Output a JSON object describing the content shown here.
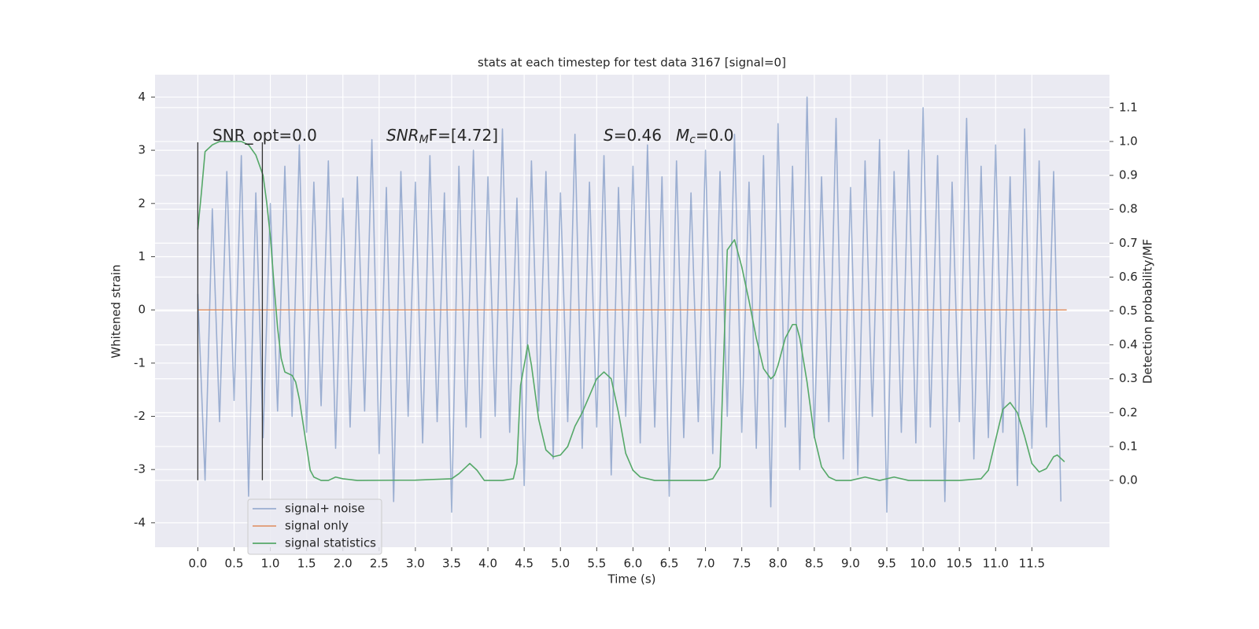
{
  "chart_data": {
    "type": "line",
    "title": "stats at each timestep for test data 3167 [signal=0]",
    "xlabel": "Time (s)",
    "ylabel": "Whitened strain",
    "y2label": "Detection probability/MF",
    "xlim": [
      -0.59,
      12.57
    ],
    "ylim": [
      -4.46,
      4.42
    ],
    "y2lim": [
      -0.197,
      1.197
    ],
    "xticks": [
      {
        "value": 0,
        "label": "0.0"
      },
      0.5,
      {
        "value": 1,
        "label": "1.0"
      },
      1.5,
      {
        "value": 2,
        "label": "2.0"
      },
      2.5,
      {
        "value": 3,
        "label": "3.0"
      },
      3.5,
      {
        "value": 4,
        "label": "4.0"
      },
      4.5,
      {
        "value": 5,
        "label": "5.0"
      },
      5.5,
      {
        "value": 6,
        "label": "6.0"
      },
      6.5,
      {
        "value": 7,
        "label": "7.0"
      },
      7.5,
      {
        "value": 8,
        "label": "8.0"
      },
      8.5,
      {
        "value": 9,
        "label": "9.0"
      },
      9.5,
      {
        "value": 10,
        "label": "10.0"
      },
      10.5,
      {
        "value": 11,
        "label": "11.0"
      },
      11.5
    ],
    "yticks": [
      -4,
      -3,
      -2,
      -1,
      0,
      1,
      2,
      3,
      4
    ],
    "y2ticks": [
      {
        "value": 0,
        "label": "0.0"
      },
      0.1,
      0.2,
      0.3,
      0.4,
      0.5,
      0.6,
      0.7,
      0.8,
      0.9,
      {
        "value": 1,
        "label": "1.0"
      },
      1.1
    ],
    "grid": true,
    "background": "#eaeaf2",
    "legend": "lower left",
    "series": [
      {
        "name": "signal+ noise",
        "color": "#4c72b0",
        "opacity": 0.5,
        "x": [
          0,
          0.1,
          0.2,
          0.3,
          0.4,
          0.5,
          0.6,
          0.7,
          0.8,
          0.9,
          1,
          1.1,
          1.2,
          1.3,
          1.4,
          1.5,
          1.6,
          1.7,
          1.8,
          1.9,
          2,
          2.1,
          2.2,
          2.3,
          2.4,
          2.5,
          2.6,
          2.7,
          2.8,
          2.9,
          3,
          3.1,
          3.2,
          3.3,
          3.4,
          3.5,
          3.6,
          3.7,
          3.8,
          3.9,
          4,
          4.1,
          4.2,
          4.3,
          4.4,
          4.5,
          4.6,
          4.7,
          4.8,
          4.9,
          5,
          5.1,
          5.2,
          5.3,
          5.4,
          5.5,
          5.6,
          5.7,
          5.8,
          5.9,
          6,
          6.1,
          6.2,
          6.3,
          6.4,
          6.5,
          6.6,
          6.7,
          6.8,
          6.9,
          7,
          7.1,
          7.2,
          7.3,
          7.4,
          7.5,
          7.6,
          7.7,
          7.8,
          7.9,
          8,
          8.1,
          8.2,
          8.3,
          8.4,
          8.5,
          8.6,
          8.7,
          8.8,
          8.9,
          9,
          9.1,
          9.2,
          9.3,
          9.4,
          9.5,
          9.6,
          9.7,
          9.8,
          9.9,
          10,
          10.1,
          10.2,
          10.3,
          10.4,
          10.5,
          10.6,
          10.7,
          10.8,
          10.9,
          11,
          11.1,
          11.2,
          11.3,
          11.4,
          11.5,
          11.6,
          11.7,
          11.8,
          11.9
        ],
        "values": [
          0.3,
          -3.2,
          1.9,
          -2.1,
          2.6,
          -1.7,
          2.9,
          -3.5,
          2.2,
          -2.4,
          2.0,
          -1.9,
          2.7,
          -2.0,
          3.1,
          -2.3,
          2.4,
          -1.8,
          2.8,
          -2.6,
          2.1,
          -2.2,
          2.5,
          -1.9,
          3.2,
          -2.7,
          2.3,
          -3.6,
          2.6,
          -2.0,
          2.4,
          -2.5,
          2.9,
          -2.1,
          2.2,
          -3.8,
          2.7,
          -2.2,
          3.0,
          -2.4,
          2.5,
          -2.0,
          3.4,
          -2.3,
          2.1,
          -3.3,
          2.8,
          -1.9,
          2.6,
          -2.8,
          2.2,
          -2.1,
          3.3,
          -2.6,
          2.4,
          -2.2,
          2.9,
          -3.1,
          2.3,
          -2.0,
          2.7,
          -2.5,
          3.1,
          -2.2,
          2.5,
          -3.5,
          2.8,
          -2.4,
          2.2,
          -2.1,
          3.0,
          -2.7,
          2.6,
          -2.0,
          3.3,
          -2.3,
          2.4,
          -2.6,
          2.9,
          -3.7,
          3.5,
          -2.2,
          2.7,
          -3.0,
          4.0,
          -2.4,
          2.5,
          -2.1,
          3.6,
          -2.8,
          2.3,
          -3.1,
          2.8,
          -2.0,
          3.2,
          -3.8,
          2.6,
          -2.3,
          3.0,
          -2.5,
          3.8,
          -2.2,
          2.9,
          -3.6,
          2.4,
          -2.1,
          3.6,
          -2.8,
          2.7,
          -2.4,
          3.1,
          -2.3,
          2.5,
          -3.3,
          3.4,
          -2.6,
          2.8,
          -2.2,
          2.6,
          -3.6
        ]
      },
      {
        "name": "signal only",
        "color": "#dd8452",
        "opacity": 0.8,
        "x": [
          0,
          11.98
        ],
        "values": [
          0,
          0
        ]
      },
      {
        "name": "signal statistics",
        "color": "#55a868",
        "opacity": 1,
        "axis": "y2",
        "x": [
          0,
          0.05,
          0.1,
          0.2,
          0.3,
          0.5,
          0.6,
          0.7,
          0.8,
          0.9,
          0.95,
          1.0,
          1.05,
          1.1,
          1.15,
          1.2,
          1.3,
          1.35,
          1.4,
          1.5,
          1.55,
          1.6,
          1.7,
          1.8,
          1.9,
          2.0,
          2.2,
          3.0,
          3.5,
          3.6,
          3.7,
          3.75,
          3.85,
          3.95,
          4.2,
          4.35,
          4.4,
          4.45,
          4.55,
          4.6,
          4.7,
          4.8,
          4.9,
          5.0,
          5.1,
          5.2,
          5.3,
          5.4,
          5.5,
          5.6,
          5.7,
          5.8,
          5.9,
          6.0,
          6.1,
          6.3,
          7.0,
          7.1,
          7.2,
          7.3,
          7.4,
          7.5,
          7.6,
          7.7,
          7.8,
          7.9,
          7.95,
          8.0,
          8.1,
          8.2,
          8.25,
          8.3,
          8.4,
          8.5,
          8.6,
          8.7,
          8.8,
          9.0,
          9.2,
          9.4,
          9.6,
          9.8,
          10.0,
          10.5,
          10.8,
          10.9,
          11.0,
          11.1,
          11.2,
          11.3,
          11.4,
          11.5,
          11.6,
          11.7,
          11.8,
          11.85,
          11.95
        ],
        "values": [
          0.74,
          0.85,
          0.97,
          0.99,
          1.0,
          1.0,
          1.0,
          0.99,
          0.96,
          0.9,
          0.82,
          0.72,
          0.58,
          0.45,
          0.36,
          0.32,
          0.31,
          0.29,
          0.24,
          0.1,
          0.03,
          0.01,
          0.0,
          0.0,
          0.01,
          0.005,
          0.0,
          0.001,
          0.005,
          0.02,
          0.04,
          0.05,
          0.03,
          0.0,
          0.0,
          0.005,
          0.05,
          0.28,
          0.4,
          0.34,
          0.18,
          0.09,
          0.07,
          0.075,
          0.1,
          0.16,
          0.2,
          0.25,
          0.3,
          0.32,
          0.3,
          0.2,
          0.08,
          0.03,
          0.01,
          0.0,
          0.0,
          0.005,
          0.04,
          0.68,
          0.71,
          0.63,
          0.53,
          0.42,
          0.33,
          0.3,
          0.31,
          0.34,
          0.42,
          0.46,
          0.46,
          0.42,
          0.29,
          0.13,
          0.04,
          0.01,
          0.0,
          0.0,
          0.01,
          0.0,
          0.01,
          0.0,
          0.0,
          0.0,
          0.005,
          0.03,
          0.12,
          0.21,
          0.23,
          0.2,
          0.13,
          0.05,
          0.025,
          0.035,
          0.07,
          0.075,
          0.055
        ]
      }
    ],
    "vlines": {
      "x": [
        0,
        0.89
      ],
      "ylim": [
        -3.2,
        3.15
      ],
      "color": "#333333"
    },
    "annotations": [
      {
        "parts": [
          {
            "text": "SNR_opt=0.0",
            "style": "normal"
          }
        ]
      },
      {
        "parts": [
          {
            "text": "SNR",
            "style": "italic"
          },
          {
            "text": "M",
            "style": "sub"
          },
          {
            "text": "F=[4.72]",
            "style": "normal"
          }
        ]
      },
      {
        "parts": [
          {
            "text": "S",
            "style": "italic"
          },
          {
            "text": "=0.46",
            "style": "normal"
          }
        ]
      },
      {
        "parts": [
          {
            "text": "M",
            "style": "italic"
          },
          {
            "text": "c",
            "style": "sub"
          },
          {
            "text": "=0.0",
            "style": "normal"
          }
        ]
      }
    ]
  }
}
